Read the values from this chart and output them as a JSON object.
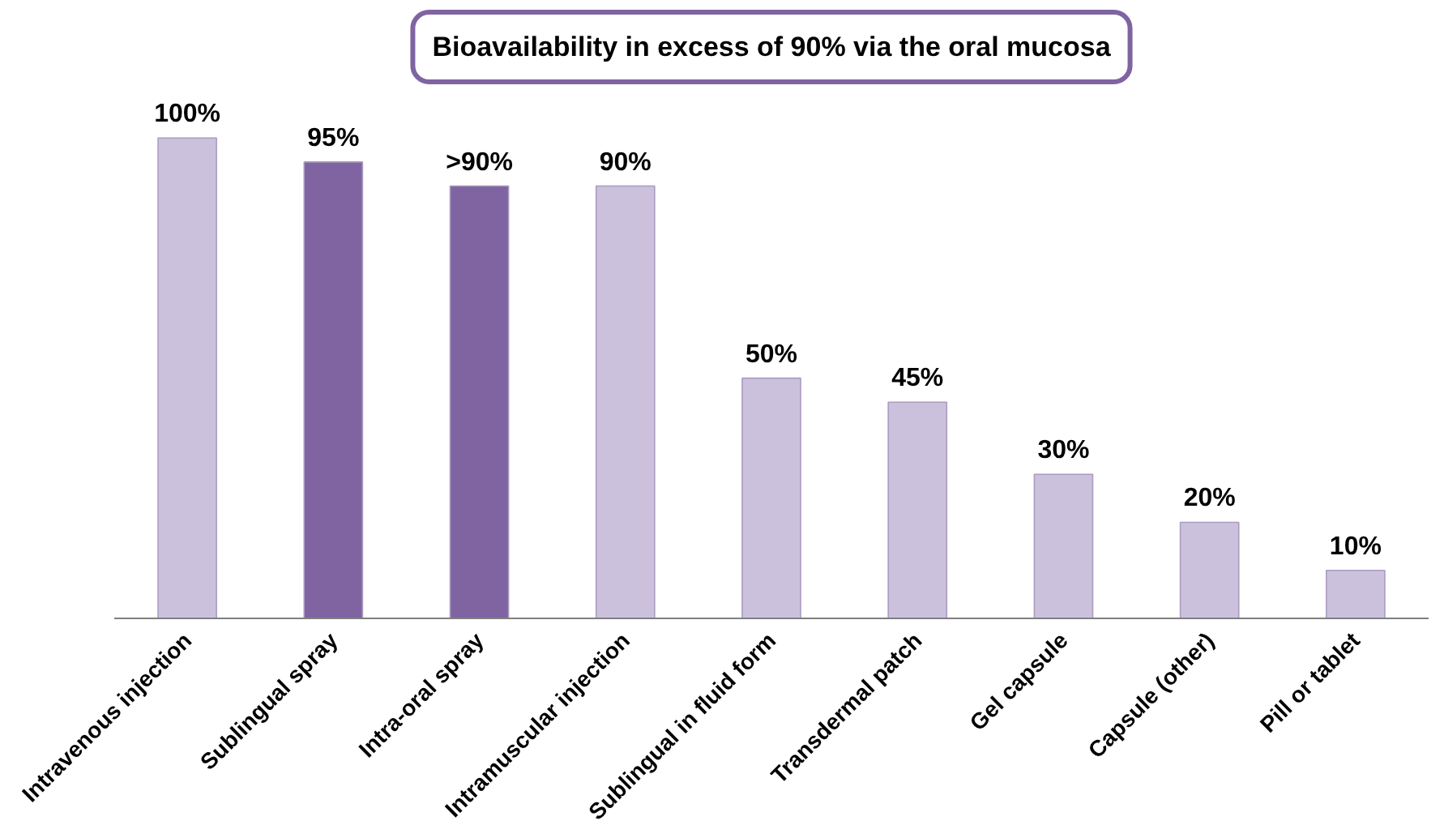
{
  "chart_data": {
    "type": "bar",
    "title": "Bioavailability in excess of 90% via the oral mucosa",
    "categories": [
      "Intravenous injection",
      "Sublingual spray",
      "Intra-oral spray",
      "Intramuscular injection",
      "Sublingual in fluid form",
      "Transdermal patch",
      "Gel capsule",
      "Capsule (other)",
      "Pill or tablet"
    ],
    "values": [
      100,
      95,
      90,
      90,
      50,
      45,
      30,
      20,
      10
    ],
    "colors": [
      "#ccc1dd",
      "#8064a2",
      "#8064a2",
      "#ccc1dd",
      "#ccc1dd",
      "#ccc1dd",
      "#ccc1dd",
      "#ccc1dd",
      "#ccc1dd"
    ],
    "value_labels": [
      "100%",
      "95%",
      ">90%",
      "90%",
      "50%",
      "45%",
      "30%",
      "20%",
      "10%"
    ]
  }
}
